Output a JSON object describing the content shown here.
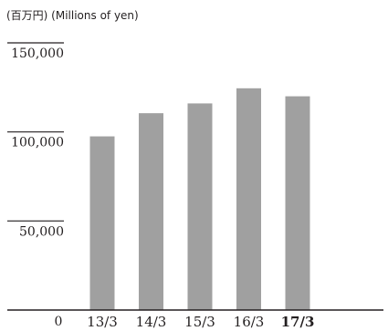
{
  "chart_data": {
    "type": "bar",
    "unit_label": "(百万円) (Millions of yen)",
    "categories": [
      "13/3",
      "14/3",
      "15/3",
      "16/3",
      "17/3"
    ],
    "highlight_category": "17/3",
    "values": [
      97500,
      110500,
      116000,
      124500,
      120000
    ],
    "yticks": [
      {
        "value": 150000,
        "label": "150,000"
      },
      {
        "value": 100000,
        "label": "100,000"
      },
      {
        "value": 50000,
        "label": "50,000"
      },
      {
        "value": 0,
        "label": "0"
      }
    ],
    "ylim": [
      0,
      150000
    ],
    "grid": false,
    "bar_color": "#a0a0a0",
    "axis_color": "#231f20"
  }
}
